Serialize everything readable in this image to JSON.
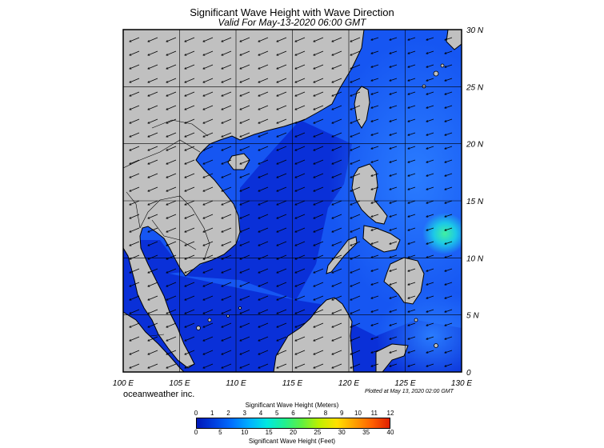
{
  "title": "Significant Wave Height with Wave Direction",
  "subtitle": "Valid For May-13-2020 06:00 GMT",
  "brand": "oceanweather inc.",
  "plotted": "Plotted at May 13, 2020 02:00 GMT",
  "x_axis": {
    "ticks": [
      "100 E",
      "105 E",
      "110 E",
      "115 E",
      "120 E",
      "125 E",
      "130 E"
    ]
  },
  "y_axis": {
    "ticks": [
      "30 N",
      "25 N",
      "20 N",
      "15 N",
      "10 N",
      "5 N",
      "0"
    ]
  },
  "extent": {
    "lon_min": 100,
    "lon_max": 130,
    "lat_min": 0,
    "lat_max": 30
  },
  "colorbar": {
    "meters_title": "Significant Wave Height (Meters)",
    "feet_title": "Significant Wave Height (Feet)",
    "meters_ticks": [
      "0",
      "1",
      "2",
      "3",
      "4",
      "5",
      "6",
      "7",
      "8",
      "9",
      "10",
      "11",
      "12"
    ],
    "feet_ticks": [
      "0",
      "5",
      "10",
      "15",
      "20",
      "25",
      "30",
      "35",
      "40"
    ],
    "colors": [
      "#0018b8",
      "#0040e0",
      "#0070ff",
      "#00b0ff",
      "#00e8e0",
      "#20f090",
      "#60f040",
      "#c0f000",
      "#ffe000",
      "#ffa000",
      "#ff6000",
      "#e02000"
    ]
  },
  "colors": {
    "land": "#c0c0c0",
    "sea_deep": "#0a30d8",
    "sea_mid": "#1656f2",
    "sea_light": "#2a7cff",
    "sea_peak": "#3be0b0"
  }
}
